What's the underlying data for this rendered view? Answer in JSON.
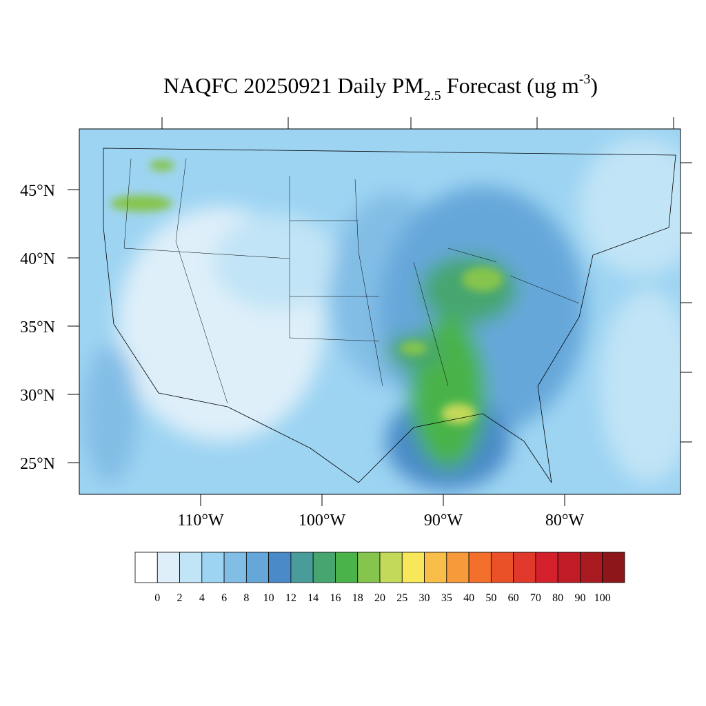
{
  "title": {
    "main": "NAQFC 20250921 Daily PM",
    "sub": "2.5",
    "rest": " Forecast (ug m",
    "sup": "-3",
    "end": ")"
  },
  "map": {
    "lat_labels": [
      {
        "value": 45,
        "label": "45°N"
      },
      {
        "value": 40,
        "label": "40°N"
      },
      {
        "value": 35,
        "label": "35°N"
      },
      {
        "value": 30,
        "label": "30°N"
      },
      {
        "value": 25,
        "label": "25°N"
      }
    ],
    "lon_labels": [
      {
        "value": -110,
        "label": "110°W"
      },
      {
        "value": -100,
        "label": "100°W"
      },
      {
        "value": -90,
        "label": "90°W"
      },
      {
        "value": -80,
        "label": "80°W"
      }
    ]
  },
  "colorbar": {
    "levels": [
      0,
      2,
      4,
      6,
      8,
      10,
      12,
      14,
      16,
      18,
      20,
      25,
      30,
      35,
      40,
      50,
      60,
      70,
      80,
      90,
      100
    ],
    "colors": [
      "#ffffff",
      "#deeff9",
      "#c1e4f6",
      "#9dd4f2",
      "#82bde6",
      "#66a7da",
      "#4a8ac8",
      "#4a9c9a",
      "#47a670",
      "#4ab349",
      "#86c54d",
      "#c2d95a",
      "#f8e65b",
      "#f9be4a",
      "#f79a3a",
      "#f36f2c",
      "#eb5128",
      "#e0382a",
      "#d4202b",
      "#c11c26",
      "#a81a20",
      "#8c1619"
    ]
  }
}
